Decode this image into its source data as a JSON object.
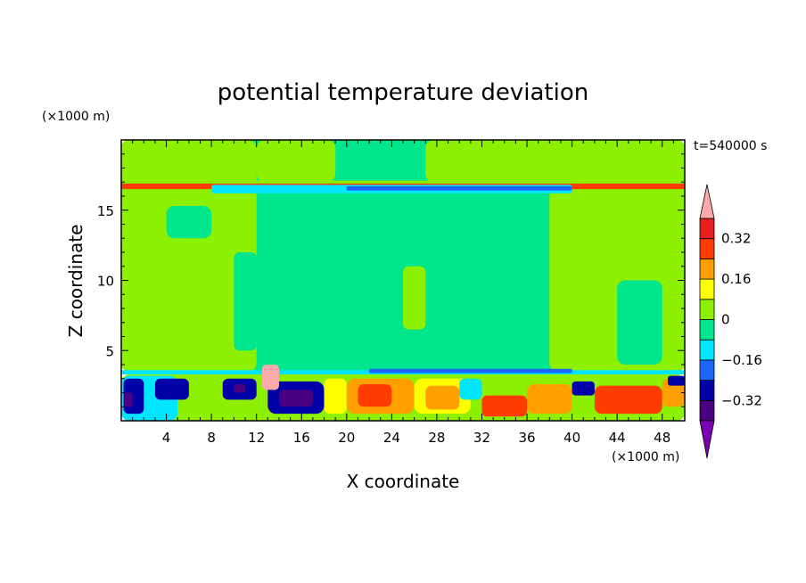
{
  "chart_data": {
    "type": "heatmap",
    "title": "potential temperature deviation",
    "xlabel": "X coordinate",
    "ylabel": "Z coordinate",
    "x_unit": "(×1000 m)",
    "z_unit": "(×1000 m)",
    "time_label": "t=540000 s",
    "xlim": [
      0,
      50
    ],
    "ylim": [
      0,
      20
    ],
    "x_ticks": [
      4,
      8,
      12,
      16,
      20,
      24,
      28,
      32,
      36,
      40,
      44,
      48
    ],
    "y_ticks": [
      5,
      10,
      15
    ],
    "colorbar": {
      "levels": [
        -0.4,
        -0.32,
        -0.24,
        -0.16,
        -0.08,
        0,
        0.08,
        0.16,
        0.24,
        0.32,
        0.4
      ],
      "colors": [
        "#7a00b4",
        "#4b0082",
        "#0000a8",
        "#1e64ff",
        "#00e6ff",
        "#00e68c",
        "#8cf000",
        "#ffff00",
        "#ffa000",
        "#ff3c00",
        "#e61e1e",
        "#ffaaaa"
      ],
      "labels": [
        {
          "value": 0.32,
          "text": "0.32"
        },
        {
          "value": 0.16,
          "text": "0.16"
        },
        {
          "value": 0,
          "text": "0"
        },
        {
          "value": -0.16,
          "text": "−0.16"
        },
        {
          "value": -0.32,
          "text": "−0.32"
        }
      ]
    },
    "regions": [
      {
        "class": -0.02,
        "x": [
          0,
          50
        ],
        "z": [
          3.5,
          20
        ]
      },
      {
        "class": 0.05,
        "x": [
          0,
          12
        ],
        "z": [
          3.5,
          20
        ]
      },
      {
        "class": 0.05,
        "x": [
          38,
          50
        ],
        "z": [
          3.5,
          20
        ]
      },
      {
        "class": 0.05,
        "x": [
          12,
          19
        ],
        "z": [
          17,
          20
        ]
      },
      {
        "class": 0.05,
        "x": [
          27,
          46
        ],
        "z": [
          17,
          20
        ]
      },
      {
        "class": -0.02,
        "x": [
          4,
          8
        ],
        "z": [
          13,
          15.3
        ]
      },
      {
        "class": -0.02,
        "x": [
          10,
          12
        ],
        "z": [
          5,
          12
        ]
      },
      {
        "class": -0.02,
        "x": [
          44,
          48
        ],
        "z": [
          4,
          10
        ]
      },
      {
        "class": 0.05,
        "x": [
          25,
          27
        ],
        "z": [
          6.5,
          11
        ]
      },
      {
        "class": 0.3,
        "x": [
          0,
          50
        ],
        "z": [
          16.5,
          17
        ]
      },
      {
        "class": 0.05,
        "x": [
          0,
          50
        ],
        "z": [
          16.9,
          17.1
        ]
      },
      {
        "class": -0.1,
        "x": [
          8,
          40
        ],
        "z": [
          16.2,
          16.8
        ]
      },
      {
        "class": -0.2,
        "x": [
          20,
          40
        ],
        "z": [
          16.4,
          16.7
        ]
      },
      {
        "class": -0.1,
        "x": [
          0,
          50
        ],
        "z": [
          3.3,
          3.6
        ]
      },
      {
        "class": 0.05,
        "x": [
          0,
          50
        ],
        "z": [
          0,
          3.3
        ]
      },
      {
        "class": -0.1,
        "x": [
          0,
          5
        ],
        "z": [
          0,
          3.2
        ]
      },
      {
        "class": -0.3,
        "x": [
          0.2,
          2
        ],
        "z": [
          0.5,
          3
        ]
      },
      {
        "class": -0.38,
        "x": [
          0.3,
          1
        ],
        "z": [
          1,
          2
        ]
      },
      {
        "class": -0.3,
        "x": [
          3,
          6
        ],
        "z": [
          1.5,
          3
        ]
      },
      {
        "class": -0.3,
        "x": [
          9,
          12
        ],
        "z": [
          1.5,
          3
        ]
      },
      {
        "class": -0.38,
        "x": [
          10,
          11
        ],
        "z": [
          2,
          2.6
        ]
      },
      {
        "class": -0.3,
        "x": [
          13,
          18
        ],
        "z": [
          0.5,
          2.8
        ]
      },
      {
        "class": -0.38,
        "x": [
          14,
          17
        ],
        "z": [
          1,
          2.2
        ]
      },
      {
        "class": 0.1,
        "x": [
          18,
          20
        ],
        "z": [
          0.5,
          3
        ]
      },
      {
        "class": 0.2,
        "x": [
          20,
          26
        ],
        "z": [
          0.5,
          3
        ]
      },
      {
        "class": 0.3,
        "x": [
          21,
          24
        ],
        "z": [
          1,
          2.6
        ]
      },
      {
        "class": 0.1,
        "x": [
          26,
          31
        ],
        "z": [
          0.5,
          3
        ]
      },
      {
        "class": 0.2,
        "x": [
          27,
          30
        ],
        "z": [
          0.8,
          2.5
        ]
      },
      {
        "class": -0.1,
        "x": [
          30,
          32
        ],
        "z": [
          1.5,
          3
        ]
      },
      {
        "class": 0.3,
        "x": [
          32,
          36
        ],
        "z": [
          0.3,
          1.8
        ]
      },
      {
        "class": 0.2,
        "x": [
          36,
          40
        ],
        "z": [
          0.5,
          2.6
        ]
      },
      {
        "class": -0.3,
        "x": [
          40,
          42
        ],
        "z": [
          1.8,
          2.8
        ]
      },
      {
        "class": 0.3,
        "x": [
          42,
          48
        ],
        "z": [
          0.5,
          2.5
        ]
      },
      {
        "class": 0.2,
        "x": [
          48,
          50
        ],
        "z": [
          1,
          3
        ]
      },
      {
        "class": -0.3,
        "x": [
          48.5,
          50
        ],
        "z": [
          2.5,
          3.2
        ]
      },
      {
        "class": 0.4,
        "x": [
          12.5,
          14
        ],
        "z": [
          2.2,
          4
        ]
      },
      {
        "class": -0.2,
        "x": [
          22,
          40
        ],
        "z": [
          3.4,
          3.7
        ]
      }
    ]
  }
}
